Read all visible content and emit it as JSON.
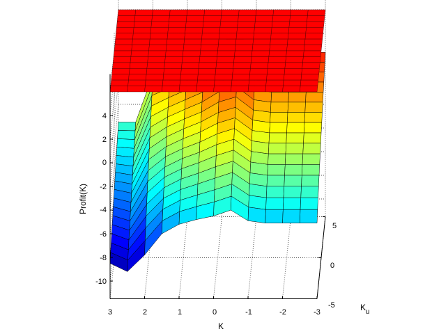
{
  "chart_data": {
    "type": "surface",
    "title": "",
    "xlabel": "K",
    "ylabel": "Profit(K)",
    "ulabel": {
      "main": "K",
      "sub": "u"
    },
    "x_ticks": [
      "3",
      "2",
      "1",
      "0",
      "-1",
      "-2",
      "-3"
    ],
    "y_ticks": [
      "4",
      "2",
      "0",
      "-2",
      "-4",
      "-6",
      "-8",
      "-10"
    ],
    "u_ticks": [
      "5",
      "0",
      "-5"
    ],
    "xlim": [
      -3,
      3
    ],
    "ylim": [
      -11.5,
      7.5
    ],
    "ulim": [
      -5,
      5
    ],
    "grid": true,
    "colormap": "jet",
    "series": [
      {
        "surface": "profit_surface",
        "K": [
          3,
          2.5,
          2,
          1.5,
          1,
          0.5,
          0,
          -0.5,
          -1,
          -1.5,
          -2,
          -2.5,
          -3
        ],
        "profit_at_Ku_min": [
          -8.5,
          -9.2,
          -7.8,
          -6.0,
          -5.2,
          -4.8,
          -4.5,
          -4.0,
          -4.9,
          -5.1,
          -5.1,
          -5.1,
          -5.1
        ],
        "profit_at_Ku_max": [
          -3.5,
          -3.5,
          0.5,
          1.0,
          1.6,
          2.3,
          3.4,
          3.8,
          2.6,
          2.4,
          2.4,
          2.4,
          2.4
        ]
      },
      {
        "surface": "constant_plane",
        "level": 6.0,
        "color": "#ff0000"
      }
    ]
  }
}
